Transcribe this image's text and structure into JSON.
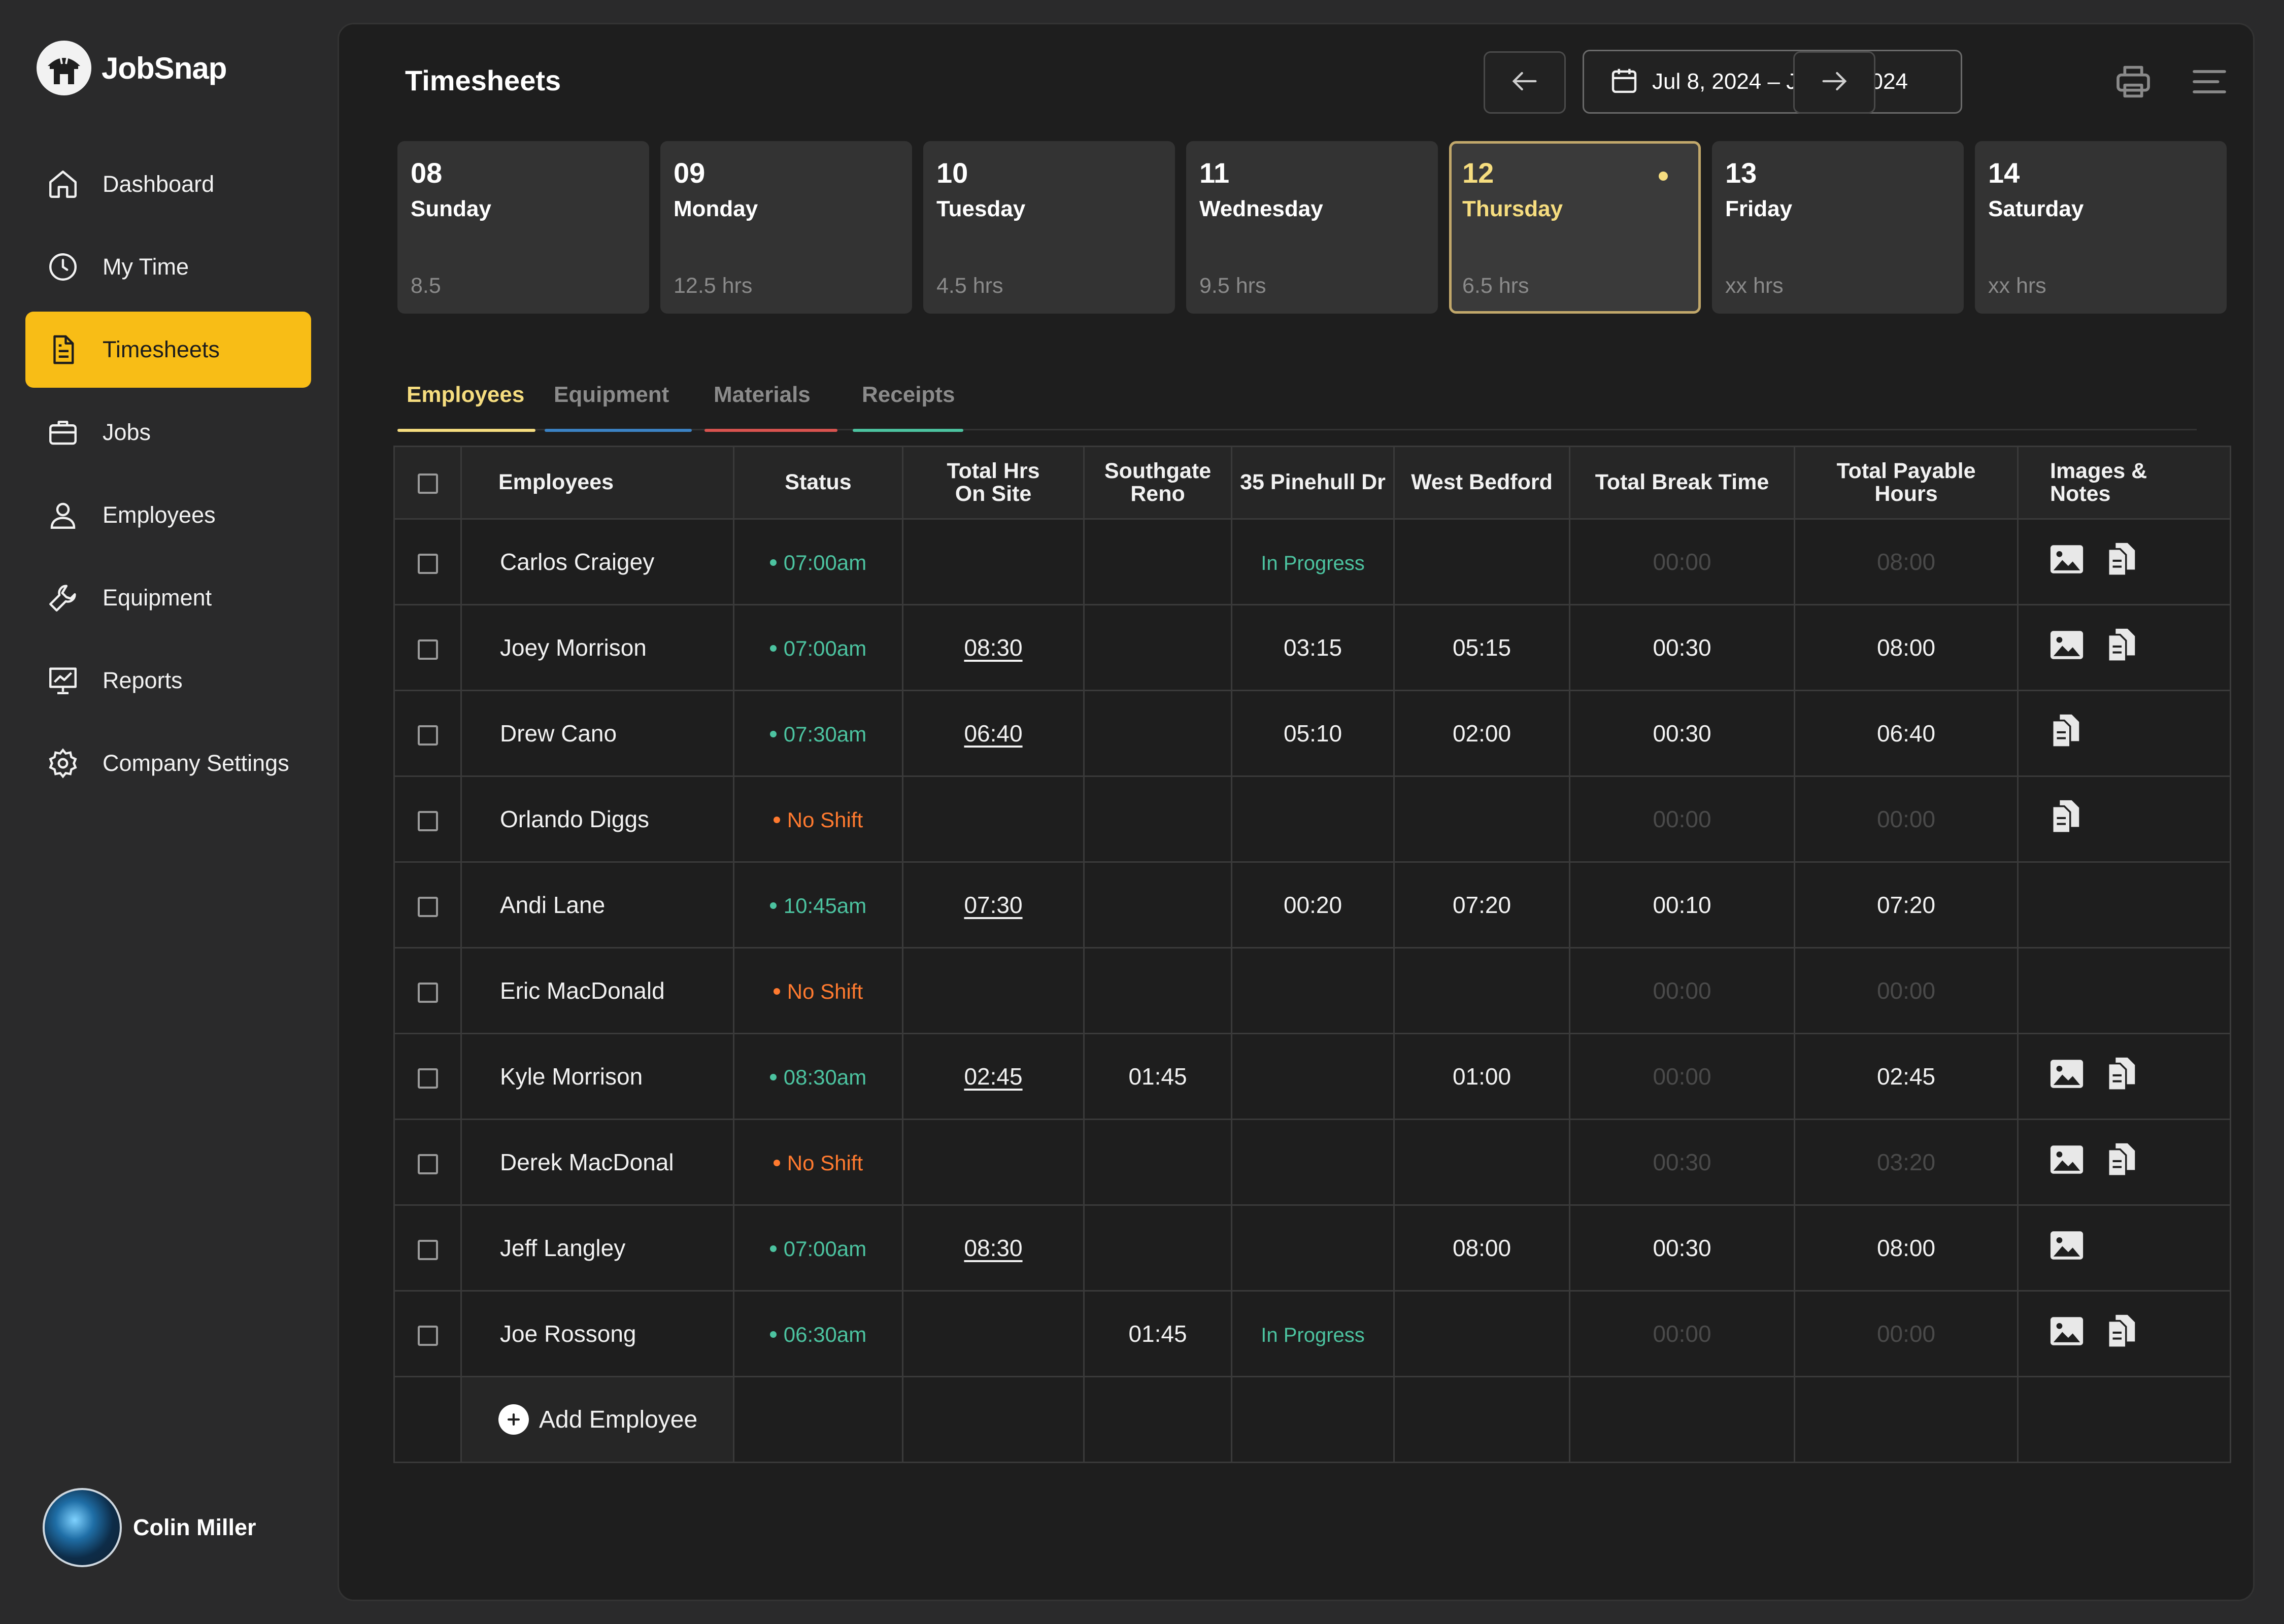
{
  "app": {
    "name": "JobSnap"
  },
  "sidebar": {
    "items": [
      {
        "label": "Dashboard",
        "icon": "home-icon"
      },
      {
        "label": "My Time",
        "icon": "clock-icon"
      },
      {
        "label": "Timesheets",
        "icon": "document-icon",
        "active": true
      },
      {
        "label": "Jobs",
        "icon": "briefcase-icon"
      },
      {
        "label": "Employees",
        "icon": "person-icon"
      },
      {
        "label": "Equipment",
        "icon": "wrench-icon"
      },
      {
        "label": "Reports",
        "icon": "chart-icon"
      },
      {
        "label": "Company Settings",
        "icon": "gear-icon"
      }
    ],
    "user": {
      "name": "Colin Miller"
    }
  },
  "header": {
    "title": "Timesheets",
    "date_range": "Jul 8, 2024 – Jul 14, 2024"
  },
  "days": [
    {
      "num": "08",
      "name": "Sunday",
      "hours": "8.5"
    },
    {
      "num": "09",
      "name": "Monday",
      "hours": "12.5 hrs"
    },
    {
      "num": "10",
      "name": "Tuesday",
      "hours": "4.5 hrs"
    },
    {
      "num": "11",
      "name": "Wednesday",
      "hours": "9.5 hrs"
    },
    {
      "num": "12",
      "name": "Thursday",
      "hours": "6.5 hrs",
      "active": true
    },
    {
      "num": "13",
      "name": "Friday",
      "hours": "xx hrs"
    },
    {
      "num": "14",
      "name": "Saturday",
      "hours": "xx hrs"
    }
  ],
  "tabs": [
    {
      "label": "Employees",
      "color": "#f6dd7f",
      "active": true
    },
    {
      "label": "Equipment",
      "color": "#3b82c4"
    },
    {
      "label": "Materials",
      "color": "#d9534f"
    },
    {
      "label": "Receipts",
      "color": "#4cc3a0"
    }
  ],
  "table": {
    "headers": {
      "employees": "Employees",
      "status": "Status",
      "total_hrs_line1": "Total Hrs",
      "total_hrs_line2": "On Site",
      "southgate_line1": "Southgate",
      "southgate_line2": "Reno",
      "pinehull": "35 Pinehull Dr",
      "west_bedford": "West Bedford",
      "break": "Total Break Time",
      "payable_line1": "Total Payable",
      "payable_line2": "Hours",
      "images_line1": "Images &",
      "images_line2": "Notes"
    },
    "rows": [
      {
        "name": "Carlos Craigey",
        "status": "07:00am",
        "status_type": "on",
        "onsite": "",
        "southgate": "",
        "pinehull": "In Progress",
        "west": "",
        "break": "00:00",
        "break_dim": true,
        "payable": "08:00",
        "payable_dim": true,
        "image": true,
        "notes": true
      },
      {
        "name": "Joey Morrison",
        "status": "07:00am",
        "status_type": "on",
        "onsite": "08:30",
        "southgate": "",
        "pinehull": "03:15",
        "west": "05:15",
        "break": "00:30",
        "break_dim": false,
        "payable": "08:00",
        "payable_dim": false,
        "image": true,
        "notes": true
      },
      {
        "name": "Drew Cano",
        "status": "07:30am",
        "status_type": "on",
        "onsite": "06:40",
        "southgate": "",
        "pinehull": "05:10",
        "west": "02:00",
        "break": "00:30",
        "break_dim": false,
        "payable": "06:40",
        "payable_dim": false,
        "image": false,
        "notes": true
      },
      {
        "name": "Orlando Diggs",
        "status": "No Shift",
        "status_type": "off",
        "onsite": "",
        "southgate": "",
        "pinehull": "",
        "west": "",
        "break": "00:00",
        "break_dim": true,
        "payable": "00:00",
        "payable_dim": true,
        "image": false,
        "notes": true
      },
      {
        "name": "Andi Lane",
        "status": "10:45am",
        "status_type": "on",
        "onsite": "07:30",
        "southgate": "",
        "pinehull": "00:20",
        "west": "07:20",
        "break": "00:10",
        "break_dim": false,
        "payable": "07:20",
        "payable_dim": false,
        "image": false,
        "notes": false
      },
      {
        "name": "Eric MacDonald",
        "status": "No Shift",
        "status_type": "off",
        "onsite": "",
        "southgate": "",
        "pinehull": "",
        "west": "",
        "break": "00:00",
        "break_dim": true,
        "payable": "00:00",
        "payable_dim": true,
        "image": false,
        "notes": false
      },
      {
        "name": "Kyle Morrison",
        "status": "08:30am",
        "status_type": "on",
        "onsite": "02:45",
        "southgate": "01:45",
        "pinehull": "",
        "west": "01:00",
        "break": "00:00",
        "break_dim": true,
        "payable": "02:45",
        "payable_dim": false,
        "image": true,
        "notes": true
      },
      {
        "name": "Derek MacDonal",
        "status": "No Shift",
        "status_type": "off",
        "onsite": "",
        "southgate": "",
        "pinehull": "",
        "west": "",
        "break": "00:30",
        "break_dim": true,
        "payable": "03:20",
        "payable_dim": true,
        "image": true,
        "notes": true
      },
      {
        "name": "Jeff Langley",
        "status": "07:00am",
        "status_type": "on",
        "onsite": "08:30",
        "southgate": "",
        "pinehull": "",
        "west": "08:00",
        "break": "00:30",
        "break_dim": false,
        "payable": "08:00",
        "payable_dim": false,
        "image": true,
        "notes": false
      },
      {
        "name": "Joe Rossong",
        "status": "06:30am",
        "status_type": "on",
        "onsite": "",
        "southgate": "01:45",
        "pinehull": "In Progress",
        "west": "",
        "break": "00:00",
        "break_dim": true,
        "payable": "00:00",
        "payable_dim": true,
        "image": true,
        "notes": true
      }
    ],
    "add_label": "Add Employee"
  }
}
